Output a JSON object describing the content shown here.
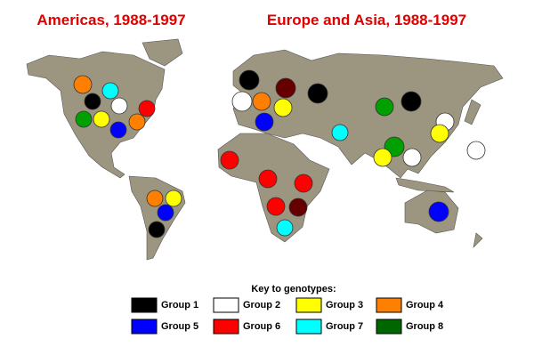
{
  "titles": {
    "americas": "Americas, 1988-1997",
    "europe_asia": "Europe and Asia, 1988-1997"
  },
  "key": {
    "title": "Key to genotypes:",
    "groups": [
      {
        "label": "Group 1",
        "color": "#000000"
      },
      {
        "label": "Group 2",
        "color": "#ffffff"
      },
      {
        "label": "Group 3",
        "color": "#ffff00"
      },
      {
        "label": "Group 4",
        "color": "#ff8000"
      },
      {
        "label": "Group 5",
        "color": "#0000ff"
      },
      {
        "label": "Group 6",
        "color": "#ff0000"
      },
      {
        "label": "Group 7",
        "color": "#00ffff"
      },
      {
        "label": "Group 8",
        "color": "#006600"
      }
    ]
  }
}
